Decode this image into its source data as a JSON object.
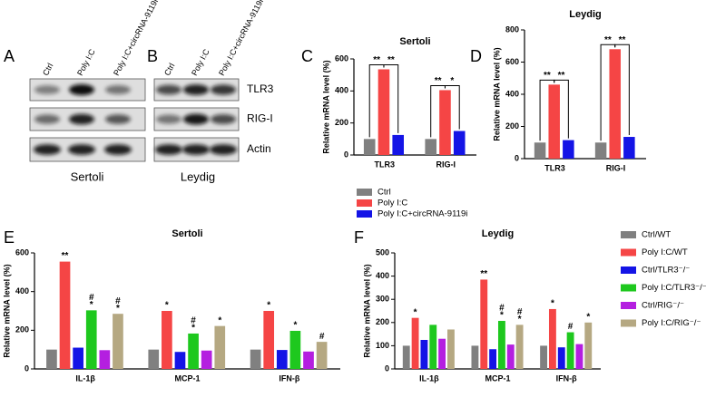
{
  "blots": [
    {
      "panel": "A",
      "lanes": [
        "Ctrl",
        "Poly I:C",
        "Poly I:C+circRNA-9119i"
      ],
      "caption": "Sertoli"
    },
    {
      "panel": "B",
      "lanes": [
        "Ctrl",
        "Poly I:C",
        "Poly I:C+circRNA-9119i"
      ],
      "caption": "Leydig",
      "rows": [
        "TLR3",
        "RIG-I",
        "Actin"
      ]
    }
  ],
  "chart_data": [
    {
      "type": "bar",
      "panel": "C",
      "title": "Sertoli",
      "y_label": "Relative mRNA level (%)",
      "categories": [
        "TLR3",
        "RIG-I"
      ],
      "ylim": [
        0,
        600
      ],
      "yticks": [
        0,
        200,
        400,
        600
      ],
      "legend": "below",
      "series": [
        {
          "name": "Ctrl",
          "color": "#808080",
          "values": [
            100,
            100
          ]
        },
        {
          "name": "Poly I:C",
          "color": "#f54545",
          "values": [
            535,
            405
          ]
        },
        {
          "name": "Poly I:C+circRNA-9119i",
          "color": "#1414e6",
          "values": [
            125,
            150
          ]
        }
      ],
      "brackets": [
        [
          "**",
          "**"
        ],
        [
          "**",
          "*"
        ]
      ]
    },
    {
      "type": "bar",
      "panel": "D",
      "title": "Leydig",
      "y_label": "Relative mRNA level (%)",
      "categories": [
        "TLR3",
        "RIG-I"
      ],
      "ylim": [
        0,
        800
      ],
      "yticks": [
        0,
        200,
        400,
        600,
        800
      ],
      "legend": "none",
      "series": [
        {
          "name": "Ctrl",
          "color": "#808080",
          "values": [
            100,
            100
          ]
        },
        {
          "name": "Poly I:C",
          "color": "#f54545",
          "values": [
            460,
            680
          ]
        },
        {
          "name": "Poly I:C+circRNA-9119i",
          "color": "#1414e6",
          "values": [
            115,
            135
          ]
        }
      ],
      "brackets": [
        [
          "**",
          "**"
        ],
        [
          "**",
          "**"
        ]
      ]
    },
    {
      "type": "bar",
      "panel": "E",
      "title": "Sertoli",
      "y_label": "Relative mRNA level (%)",
      "categories": [
        "IL-1β",
        "MCP-1",
        "IFN-β"
      ],
      "ylim": [
        0,
        600
      ],
      "yticks": [
        0,
        200,
        400,
        600
      ],
      "legend": "none",
      "series": [
        {
          "name": "Ctrl/WT",
          "color": "#808080",
          "values": [
            100,
            100,
            100
          ],
          "significance": [
            null,
            null,
            null
          ]
        },
        {
          "name": "Poly I:C/WT",
          "color": "#f54545",
          "values": [
            555,
            300,
            300
          ],
          "significance": [
            [
              "**"
            ],
            [
              "*"
            ],
            [
              "*"
            ]
          ]
        },
        {
          "name": "Ctrl/TLR3⁻/⁻",
          "color": "#1414e6",
          "values": [
            110,
            88,
            98
          ],
          "significance": [
            null,
            null,
            null
          ]
        },
        {
          "name": "Poly I:C/TLR3⁻/⁻",
          "color": "#1ec81e",
          "values": [
            303,
            183,
            197
          ],
          "significance": [
            [
              "#",
              "*"
            ],
            [
              "#",
              "*"
            ],
            [
              "*"
            ]
          ]
        },
        {
          "name": "Ctrl/RIG⁻/⁻",
          "color": "#b41fe0",
          "values": [
            97,
            95,
            90
          ],
          "significance": [
            null,
            null,
            null
          ]
        },
        {
          "name": "Poly I:C/RIG⁻/⁻",
          "color": "#b5a882",
          "values": [
            285,
            222,
            140
          ],
          "significance": [
            [
              "#",
              "*"
            ],
            [
              "*"
            ],
            [
              "#"
            ]
          ]
        }
      ]
    },
    {
      "type": "bar",
      "panel": "F",
      "title": "Leydig",
      "y_label": "Relative mRNA level (%)",
      "categories": [
        "IL-1β",
        "MCP-1",
        "IFN-β"
      ],
      "ylim": [
        0,
        500
      ],
      "yticks": [
        0,
        100,
        200,
        300,
        400,
        500
      ],
      "legend": "right",
      "series": [
        {
          "name": "Ctrl/WT",
          "color": "#808080",
          "values": [
            100,
            100,
            100
          ],
          "significance": [
            null,
            null,
            null
          ]
        },
        {
          "name": "Poly I:C/WT",
          "color": "#f54545",
          "values": [
            220,
            385,
            258
          ],
          "significance": [
            [
              "*"
            ],
            [
              "**"
            ],
            [
              "*"
            ]
          ]
        },
        {
          "name": "Ctrl/TLR3⁻/⁻",
          "color": "#1414e6",
          "values": [
            125,
            85,
            93
          ],
          "significance": [
            null,
            null,
            null
          ]
        },
        {
          "name": "Poly I:C/TLR3⁻/⁻",
          "color": "#1ec81e",
          "values": [
            190,
            207,
            158
          ],
          "significance": [
            null,
            [
              "#",
              "*"
            ],
            [
              "#"
            ]
          ]
        },
        {
          "name": "Ctrl/RIG⁻/⁻",
          "color": "#b41fe0",
          "values": [
            130,
            105,
            107
          ],
          "significance": [
            null,
            null,
            null
          ]
        },
        {
          "name": "Poly I:C/RIG⁻/⁻",
          "color": "#b5a882",
          "values": [
            170,
            190,
            200
          ],
          "significance": [
            null,
            [
              "#",
              "*"
            ],
            [
              "*"
            ]
          ]
        }
      ]
    }
  ]
}
